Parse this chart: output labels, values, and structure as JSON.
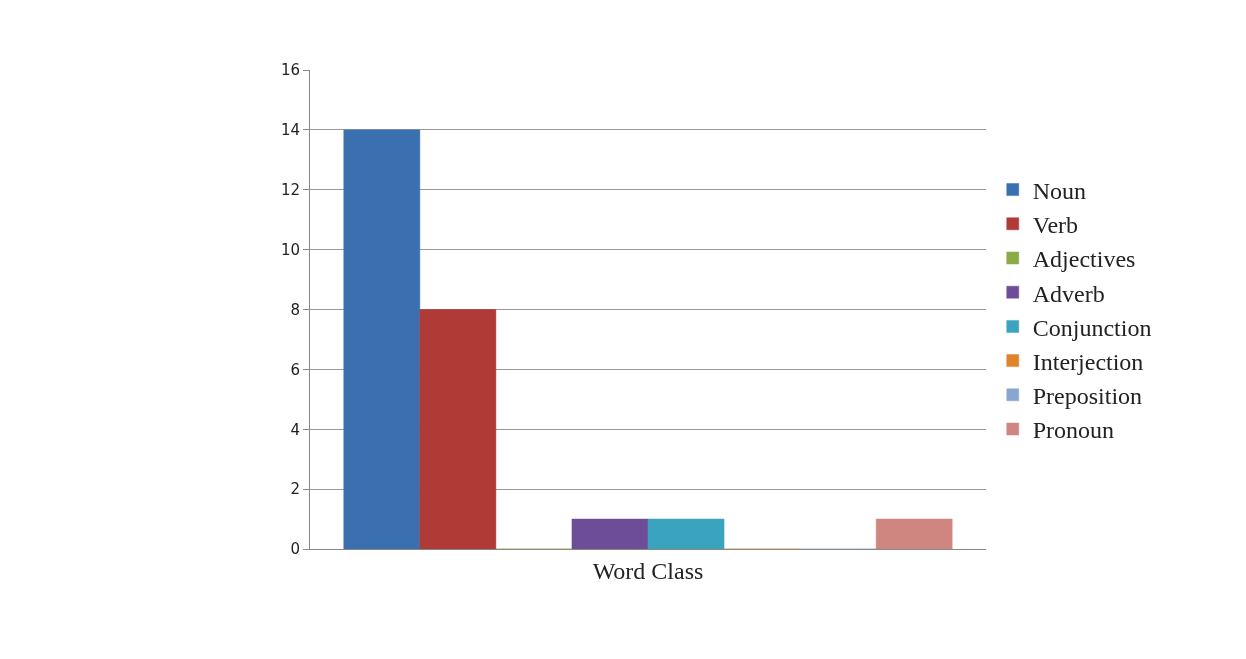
{
  "chart_data": {
    "type": "bar",
    "categories": [
      "Word Class"
    ],
    "series": [
      {
        "name": "Noun",
        "color": "#3a6fb0",
        "values": [
          14
        ]
      },
      {
        "name": "Verb",
        "color": "#b03a36",
        "values": [
          8
        ]
      },
      {
        "name": "Adjectives",
        "color": "#8aab45",
        "values": [
          0
        ]
      },
      {
        "name": "Adverb",
        "color": "#6e4d98",
        "values": [
          1
        ]
      },
      {
        "name": "Conjunction",
        "color": "#3aa3bd",
        "values": [
          1
        ]
      },
      {
        "name": "Interjection",
        "color": "#e0842c",
        "values": [
          0
        ]
      },
      {
        "name": "Preposition",
        "color": "#8aa6d0",
        "values": [
          0
        ]
      },
      {
        "name": "Pronoun",
        "color": "#d08680",
        "values": [
          1
        ]
      }
    ],
    "ylim": [
      0,
      16
    ],
    "yticks": [
      0,
      2,
      4,
      6,
      8,
      10,
      12,
      14,
      16
    ],
    "grid": "y",
    "legend": "right"
  }
}
